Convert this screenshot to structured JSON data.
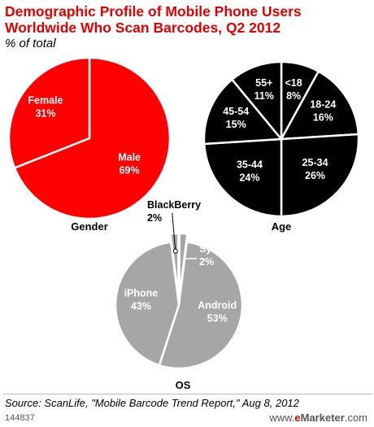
{
  "header": {
    "title": "Demographic Profile of Mobile Phone Users Worldwide Who Scan Barcodes, Q2 2012",
    "subtitle": "% of total"
  },
  "footer": {
    "source": "Source: ScanLife, \"Mobile Barcode Trend Report,\" Aug 8, 2012",
    "chart_id": "144837",
    "brand_prefix": "www.",
    "brand_e": "e",
    "brand_name": "Marketer",
    "brand_suffix": ".com"
  },
  "colors": {
    "title": "#e20000",
    "gender": "#ff0000",
    "age": "#000000",
    "os": "#a6a6a6"
  },
  "chart_data": [
    {
      "type": "pie",
      "title": "Gender",
      "categories": [
        "Male",
        "Female"
      ],
      "values": [
        69,
        31
      ],
      "labels": [
        "69%",
        "31%"
      ]
    },
    {
      "type": "pie",
      "title": "Age",
      "categories": [
        "<18",
        "18-24",
        "25-34",
        "35-44",
        "45-54",
        "55+"
      ],
      "values": [
        8,
        16,
        26,
        24,
        15,
        11
      ],
      "labels": [
        "8%",
        "16%",
        "26%",
        "24%",
        "15%",
        "11%"
      ]
    },
    {
      "type": "pie",
      "title": "OS",
      "categories": [
        "Symbian",
        "Android",
        "iPhone",
        "BlackBerry"
      ],
      "values": [
        2,
        53,
        43,
        2
      ],
      "labels": [
        "2%",
        "53%",
        "43%",
        "2%"
      ]
    }
  ]
}
